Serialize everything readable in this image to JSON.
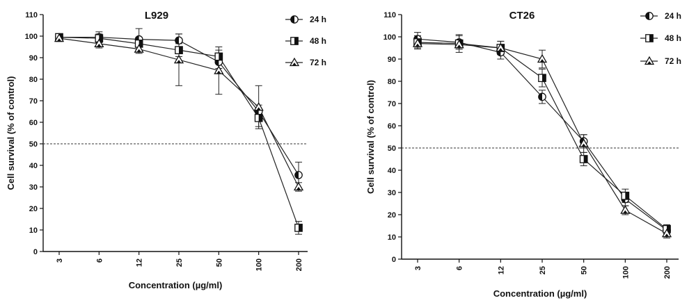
{
  "chart_data": [
    {
      "type": "line",
      "title": "L929",
      "xlabel": "Concentration (µg/ml)",
      "ylabel": "Cell survival (% of control)",
      "categories": [
        "3",
        "6",
        "12",
        "25",
        "50",
        "100",
        "200"
      ],
      "yticks": [
        "0",
        "10",
        "20",
        "30",
        "40",
        "50",
        "60",
        "70",
        "80",
        "90",
        "100",
        "110"
      ],
      "ylim": [
        0,
        110
      ],
      "reference_line": 50,
      "legend_position": "top-right",
      "series": [
        {
          "name": "24 h",
          "marker": "half-circle",
          "values": [
            99.5,
            99.5,
            98.5,
            98,
            88,
            65,
            35.5
          ],
          "errors": [
            1.5,
            2.5,
            5,
            3,
            3,
            3,
            6
          ]
        },
        {
          "name": "48 h",
          "marker": "half-square",
          "values": [
            99.5,
            99,
            96.5,
            93.5,
            90.5,
            62,
            11
          ],
          "errors": [
            1.5,
            2,
            3,
            3,
            3,
            4,
            3
          ]
        },
        {
          "name": "72 h",
          "marker": "half-triangle",
          "values": [
            99,
            96.5,
            94,
            89,
            84,
            67,
            30
          ],
          "errors": [
            1.5,
            2,
            2,
            12,
            11,
            10,
            2
          ]
        }
      ]
    },
    {
      "type": "line",
      "title": "CT26",
      "xlabel": "Concentration (µg/ml)",
      "ylabel": "Cell survival (% of control)",
      "categories": [
        "3",
        "6",
        "12",
        "25",
        "50",
        "100",
        "200"
      ],
      "yticks": [
        "0",
        "10",
        "20",
        "30",
        "40",
        "50",
        "60",
        "70",
        "80",
        "90",
        "100",
        "110"
      ],
      "ylim": [
        0,
        110
      ],
      "reference_line": 50,
      "legend_position": "top-right",
      "series": [
        {
          "name": "24 h",
          "marker": "half-circle",
          "values": [
            99,
            97.5,
            93,
            73,
            53,
            27,
            13
          ],
          "errors": [
            3,
            3,
            3,
            3,
            3,
            3,
            2
          ]
        },
        {
          "name": "48 h",
          "marker": "half-square",
          "values": [
            97.5,
            97,
            95,
            81.5,
            45,
            28.5,
            13.5
          ],
          "errors": [
            3,
            4,
            3,
            4,
            3,
            3,
            2
          ]
        },
        {
          "name": "72 h",
          "marker": "half-triangle",
          "values": [
            97,
            96.5,
            95,
            90,
            52,
            22,
            11.5
          ],
          "errors": [
            2,
            2,
            3,
            4,
            4,
            2,
            2
          ]
        }
      ]
    }
  ]
}
